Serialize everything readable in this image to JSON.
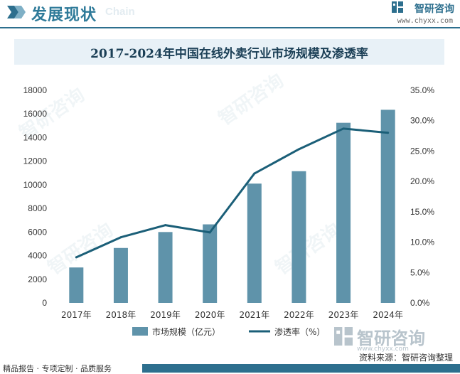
{
  "header": {
    "title": "发展现状",
    "subtitle": "Chain",
    "brand_name": "智研咨询",
    "brand_url": "www.chyxx.com"
  },
  "watermark": {
    "name": "智研咨询",
    "url": "www.chyxx.com"
  },
  "source_label": "资料来源：智研咨询整理",
  "footer_text": "精品报告 · 专项定制 · 品质服务",
  "colors": {
    "accent": "#2d6f8e",
    "bar": "#5f93aa",
    "line": "#1b5f78",
    "title_bg": "#e8f1f7"
  },
  "chart_data": {
    "type": "bar",
    "title": "2017-2024年中国在线外卖行业市场规模及渗透率",
    "categories": [
      "2017年",
      "2018年",
      "2019年",
      "2020年",
      "2021年",
      "2022年",
      "2023年",
      "2024年"
    ],
    "series": [
      {
        "name": "市场规模（亿元）",
        "type": "bar",
        "axis": "left",
        "values": [
          3000,
          4650,
          6000,
          6650,
          10100,
          11150,
          15250,
          16350
        ]
      },
      {
        "name": "渗透率（%）",
        "type": "line",
        "axis": "right",
        "values": [
          7.5,
          10.8,
          12.8,
          11.6,
          21.3,
          25.3,
          28.7,
          28.0
        ]
      }
    ],
    "y_left": {
      "min": 0,
      "max": 18000,
      "step": 2000,
      "ticks": [
        "0",
        "2000",
        "4000",
        "6000",
        "8000",
        "10000",
        "12000",
        "14000",
        "16000",
        "18000"
      ]
    },
    "y_right": {
      "min": 0,
      "max": 35,
      "step": 5,
      "ticks": [
        "0.0%",
        "5.0%",
        "10.0%",
        "15.0%",
        "20.0%",
        "25.0%",
        "30.0%",
        "35.0%"
      ]
    },
    "grid": false,
    "legend_position": "bottom"
  }
}
